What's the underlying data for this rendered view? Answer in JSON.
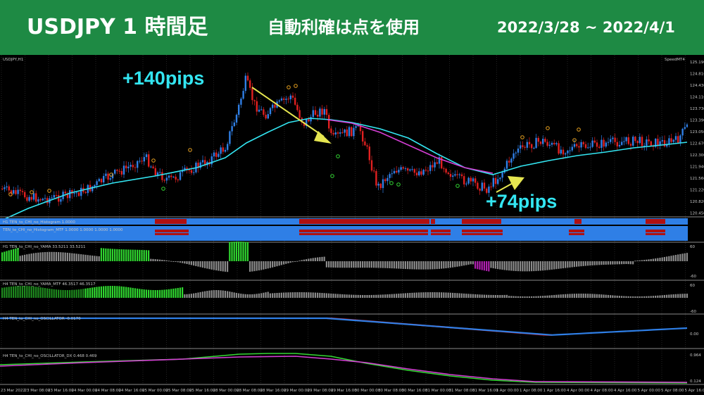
{
  "banner": {
    "title": "USDJPY 1 時間足",
    "subtitle": "自動利確は点を使用",
    "date_range": "2022/3/28 ~ 2022/4/1",
    "bg_color": "#1e8a44"
  },
  "main_panel": {
    "symbol": "USDJPY,H1",
    "corner_label": "SpeedMT4",
    "y_ticks": [
      "125.190",
      "124.810",
      "124.430",
      "124.110",
      "123.730",
      "123.390",
      "123.050",
      "122.670",
      "122.300",
      "121.940",
      "121.560",
      "121.220",
      "120.820",
      "120.450"
    ],
    "bull_color": "#2f7fe6",
    "bear_color": "#e02020",
    "ma_color": "#33e6f2",
    "ma2_color": "#d43ed4"
  },
  "annotations": {
    "gain1": "+140pips",
    "gain2": "+74pips",
    "color": "#33e6f2",
    "arrow_color": "#e6e650"
  },
  "indicators": {
    "histogram_h1": "H1 TEN_to_CHI_no_Histogram 1.0000",
    "histogram_mtf": "TEN_to_CHI_no_Histogram_MTF 1.0000 1.0000 1.0000 1.0000",
    "yama_h1": "H1  TEN_to_CHI_no_YAMA  33.5211 33.5211",
    "yama_h4": "H4  TEN_to_CHI_no_YAMA_MTF  46.3517 46.3517",
    "osc_h1": "H4  TEN_to_CHI_no_OSCILLATOR  -0.0170",
    "osc_dx": "H4  TEN_to_CHI_no_OSCILLATOR_DX  0.468 0.469"
  },
  "sub_ticks": {
    "yama_h1": [
      "60",
      "-60"
    ],
    "yama_h4": [
      "60",
      "-60"
    ],
    "osc_h1": [
      "0.00"
    ],
    "osc_dx": [
      "0.964",
      "0.124"
    ]
  },
  "x_axis_labels": [
    "23 Mar 2022",
    "23 Mar 08:00",
    "23 Mar 16:00",
    "24 Mar 00:00",
    "24 Mar 08:00",
    "24 Mar 16:00",
    "25 Mar 00:00",
    "25 Mar 08:00",
    "25 Mar 16:00",
    "28 Mar 00:00",
    "28 Mar 08:00",
    "28 Mar 16:00",
    "29 Mar 00:00",
    "29 Mar 08:00",
    "29 Mar 16:00",
    "30 Mar 00:00",
    "30 Mar 08:00",
    "30 Mar 16:00",
    "31 Mar 00:00",
    "31 Mar 08:00",
    "31 Mar 16:00",
    "1 Apr 00:00",
    "1 Apr 08:00",
    "1 Apr 16:00",
    "4 Apr 00:00",
    "4 Apr 08:00",
    "4 Apr 16:00",
    "5 Apr 00:00",
    "5 Apr 08:00",
    "5 Apr 16:00"
  ]
}
